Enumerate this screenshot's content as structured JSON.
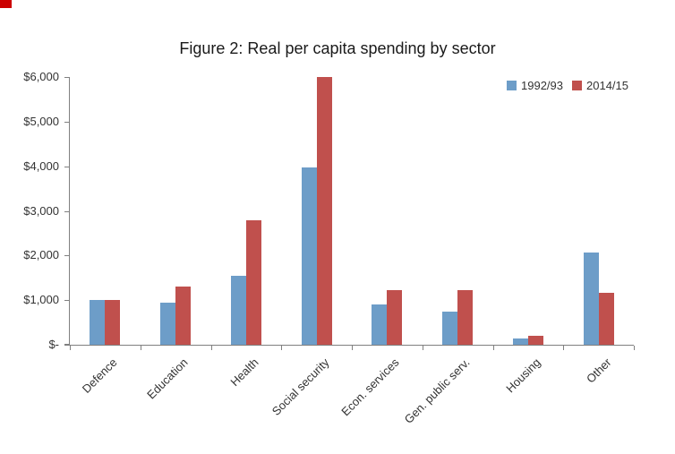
{
  "corner_mark_color": "#cc0000",
  "chart_data": {
    "type": "bar",
    "title": "Figure 2: Real per capita spending by sector",
    "categories": [
      "Defence",
      "Education",
      "Health",
      "Social security",
      "Econ. services",
      "Gen. public serv.",
      "Housing",
      "Other"
    ],
    "series": [
      {
        "name": "1992/93",
        "color": "#6d9dc8",
        "values": [
          1000,
          950,
          1550,
          3970,
          900,
          750,
          150,
          2060
        ]
      },
      {
        "name": "2014/15",
        "color": "#c0504d",
        "values": [
          1000,
          1300,
          2780,
          6000,
          1230,
          1230,
          200,
          1160
        ]
      }
    ],
    "xlabel": "",
    "ylabel": "",
    "ylim": [
      0,
      6000
    ],
    "ytick_step": 1000,
    "ytick_labels": [
      "$-",
      "$1,000",
      "$2,000",
      "$3,000",
      "$4,000",
      "$5,000",
      "$6,000"
    ],
    "grid": false,
    "legend_position": "top-right"
  }
}
